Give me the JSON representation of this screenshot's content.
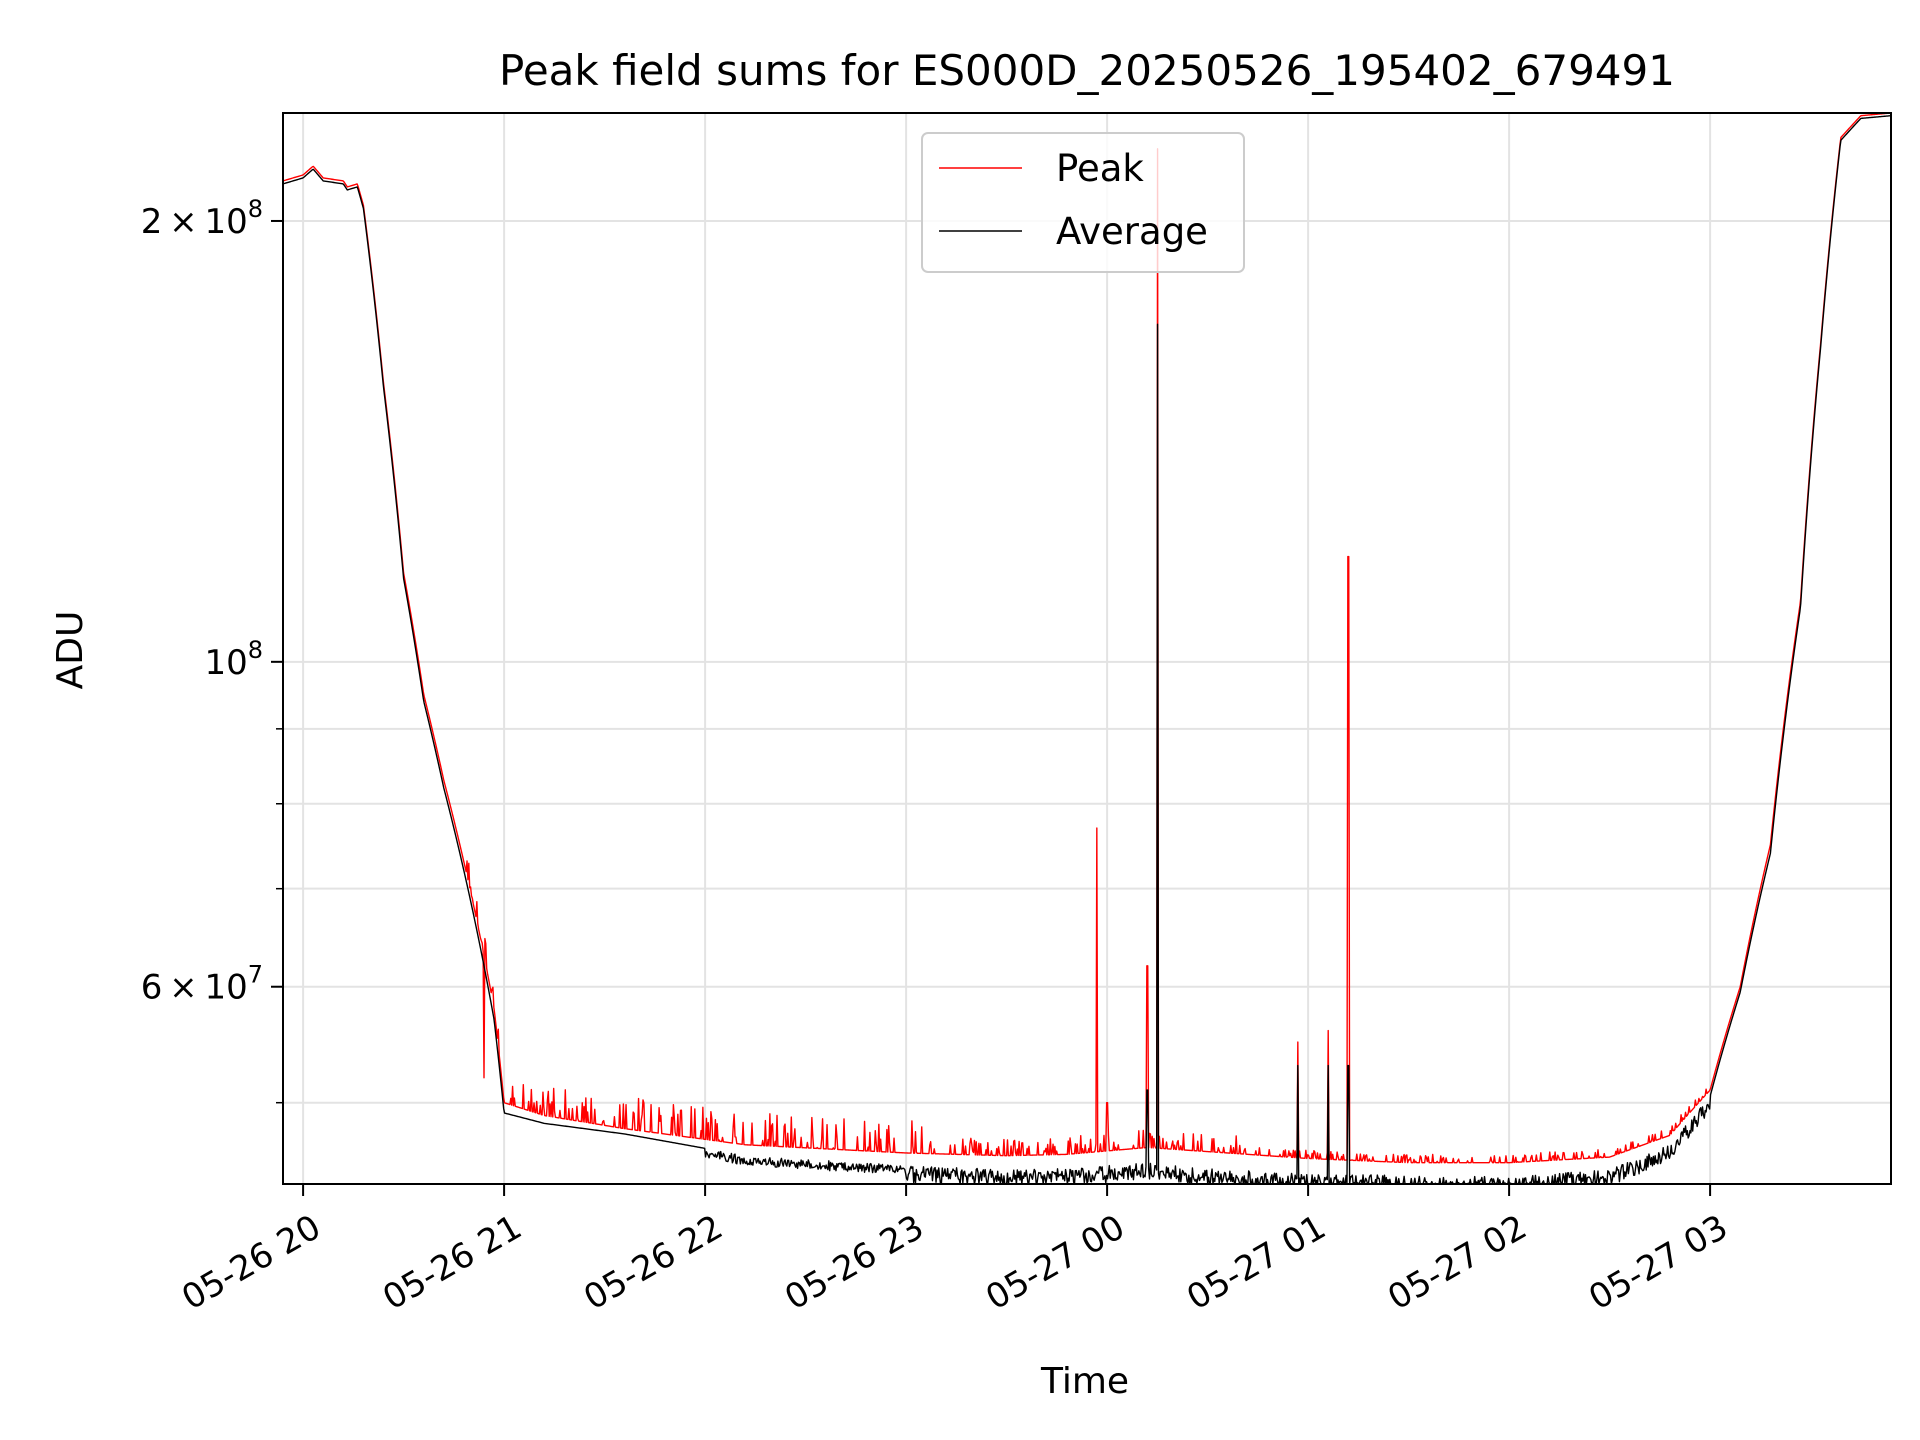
{
  "chart_data": {
    "type": "line",
    "title": "Peak field sums for ES000D_20250526_195402_679491",
    "xlabel": "Time",
    "ylabel": "ADU",
    "y_scale": "log",
    "ylim": [
      44000000,
      237000000
    ],
    "x_unit": "hours since 05-26 19:54",
    "x_range": [
      -0.1,
      7.9
    ],
    "grid": true,
    "legend_position": "top-center",
    "x_ticks": [
      {
        "label": "05-26 20",
        "value": 0
      },
      {
        "label": "05-26 21",
        "value": 1
      },
      {
        "label": "05-26 22",
        "value": 2
      },
      {
        "label": "05-26 23",
        "value": 3
      },
      {
        "label": "05-27 00",
        "value": 4
      },
      {
        "label": "05-27 01",
        "value": 5
      },
      {
        "label": "05-27 02",
        "value": 6
      },
      {
        "label": "05-27 03",
        "value": 7
      }
    ],
    "y_ticks_major": [
      {
        "value": 100000000,
        "base": "10",
        "exp": "8"
      },
      {
        "value": 200000000,
        "mantissa": "2",
        "base": "10",
        "exp": "8"
      },
      {
        "value": 60000000,
        "mantissa": "6",
        "base": "10",
        "exp": "7"
      }
    ],
    "y_ticks_minor": [
      50000000,
      70000000,
      80000000,
      90000000
    ],
    "series": [
      {
        "name": "Peak",
        "color": "#ff0000",
        "baseline": [
          [
            -0.1,
            213000000
          ],
          [
            0.0,
            215000000
          ],
          [
            0.05,
            218000000
          ],
          [
            0.1,
            214000000
          ],
          [
            0.2,
            213000000
          ],
          [
            0.22,
            211000000
          ],
          [
            0.27,
            212000000
          ],
          [
            0.3,
            205000000
          ],
          [
            0.4,
            155000000
          ],
          [
            0.5,
            115000000
          ],
          [
            0.6,
            95000000
          ],
          [
            0.7,
            83000000
          ],
          [
            0.85,
            68000000
          ],
          [
            0.95,
            58000000
          ],
          [
            1.0,
            50000000
          ],
          [
            1.2,
            49000000
          ],
          [
            1.6,
            48000000
          ],
          [
            2.2,
            46800000
          ],
          [
            3.0,
            46200000
          ],
          [
            3.5,
            46000000
          ],
          [
            3.8,
            46100000
          ],
          [
            4.2,
            46600000
          ],
          [
            4.5,
            46300000
          ],
          [
            5.0,
            45800000
          ],
          [
            5.5,
            45500000
          ],
          [
            6.0,
            45500000
          ],
          [
            6.5,
            45900000
          ],
          [
            6.8,
            47500000
          ],
          [
            7.0,
            51000000
          ],
          [
            7.15,
            60000000
          ],
          [
            7.3,
            75000000
          ],
          [
            7.45,
            110000000
          ],
          [
            7.55,
            165000000
          ],
          [
            7.65,
            228000000
          ],
          [
            7.75,
            236000000
          ],
          [
            7.9,
            237000000
          ]
        ],
        "spikes": [
          [
            3.95,
            77000000
          ],
          [
            4.2,
            62000000
          ],
          [
            4.25,
            224000000
          ],
          [
            5.2,
            118000000
          ],
          [
            5.1,
            56000000
          ],
          [
            4.95,
            55000000
          ],
          [
            0.9,
            52000000
          ],
          [
            4.0,
            50000000
          ]
        ],
        "noise_range": [
          [
            0.8,
            3.1,
            2500000
          ],
          [
            3.1,
            4.7,
            1300000
          ],
          [
            4.7,
            7.0,
            600000
          ]
        ]
      },
      {
        "name": "Average",
        "color": "#000000",
        "baseline": [
          [
            -0.1,
            212000000
          ],
          [
            0.0,
            214000000
          ],
          [
            0.05,
            217000000
          ],
          [
            0.1,
            213000000
          ],
          [
            0.2,
            212000000
          ],
          [
            0.22,
            210000000
          ],
          [
            0.27,
            211000000
          ],
          [
            0.3,
            204000000
          ],
          [
            0.4,
            154000000
          ],
          [
            0.5,
            114000000
          ],
          [
            0.6,
            94000000
          ],
          [
            0.7,
            82000000
          ],
          [
            0.85,
            67000000
          ],
          [
            0.95,
            57000000
          ],
          [
            1.0,
            49200000
          ],
          [
            1.2,
            48400000
          ],
          [
            1.6,
            47600000
          ],
          [
            2.2,
            46000000
          ],
          [
            3.0,
            45300000
          ],
          [
            3.5,
            45000000
          ],
          [
            3.8,
            45100000
          ],
          [
            4.2,
            45500000
          ],
          [
            4.5,
            45100000
          ],
          [
            5.0,
            44700000
          ],
          [
            5.5,
            44600000
          ],
          [
            6.0,
            44500000
          ],
          [
            6.5,
            45000000
          ],
          [
            6.8,
            46800000
          ],
          [
            7.0,
            50500000
          ],
          [
            7.15,
            59500000
          ],
          [
            7.3,
            74000000
          ],
          [
            7.45,
            109000000
          ],
          [
            7.55,
            164000000
          ],
          [
            7.65,
            227000000
          ],
          [
            7.75,
            235000000
          ],
          [
            7.9,
            236000000
          ]
        ],
        "spikes": [
          [
            4.25,
            170000000
          ],
          [
            4.2,
            51000000
          ],
          [
            5.2,
            53000000
          ],
          [
            5.1,
            53000000
          ],
          [
            4.95,
            53000000
          ]
        ],
        "noise_range": [
          [
            2.0,
            3.0,
            -700000
          ],
          [
            3.0,
            7.0,
            -1200000
          ]
        ]
      }
    ]
  }
}
